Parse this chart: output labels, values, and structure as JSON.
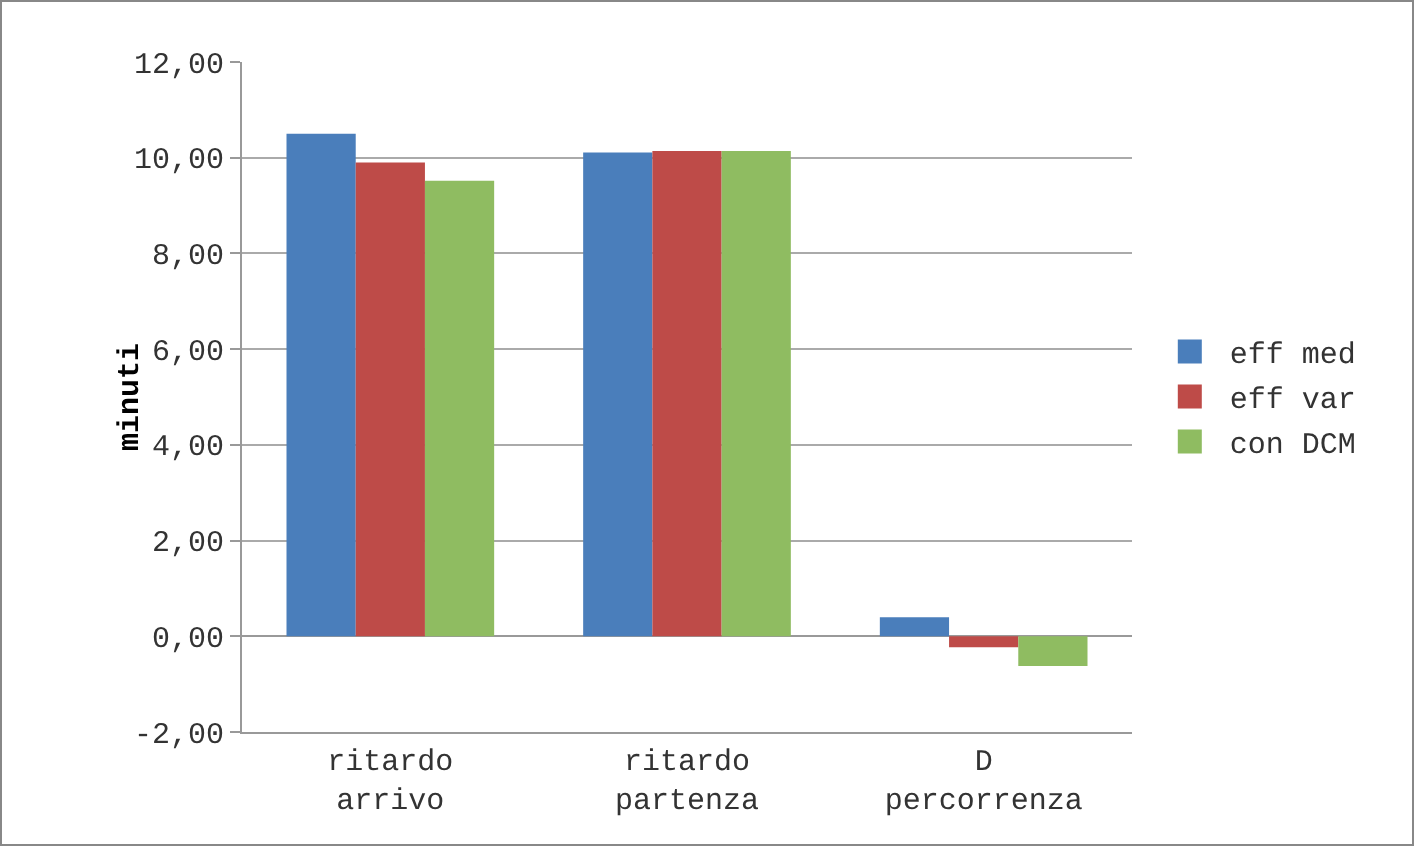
{
  "chart_data": {
    "type": "bar",
    "ylabel": "minuti",
    "categories": [
      "ritardo arrivo",
      "ritardo partenza",
      "D percorrenza"
    ],
    "series": [
      {
        "name": "eff med",
        "color": "#4a7ebb",
        "values": [
          10.5,
          10.11,
          0.4
        ]
      },
      {
        "name": "eff var",
        "color": "#be4b48",
        "values": [
          9.9,
          10.14,
          -0.23
        ]
      },
      {
        "name": "con DCM",
        "color": "#8fbc61",
        "values": [
          9.52,
          10.14,
          -0.62
        ]
      }
    ],
    "ylim": [
      -2,
      12
    ],
    "yticks": [
      {
        "value": -2,
        "label": "-2,00"
      },
      {
        "value": 0,
        "label": "0,00"
      },
      {
        "value": 2,
        "label": "2,00"
      },
      {
        "value": 4,
        "label": "4,00"
      },
      {
        "value": 6,
        "label": "6,00"
      },
      {
        "value": 8,
        "label": "8,00"
      },
      {
        "value": 10,
        "label": "10,00"
      },
      {
        "value": 12,
        "label": "12,00"
      }
    ],
    "grid": "y",
    "legend": "right"
  }
}
